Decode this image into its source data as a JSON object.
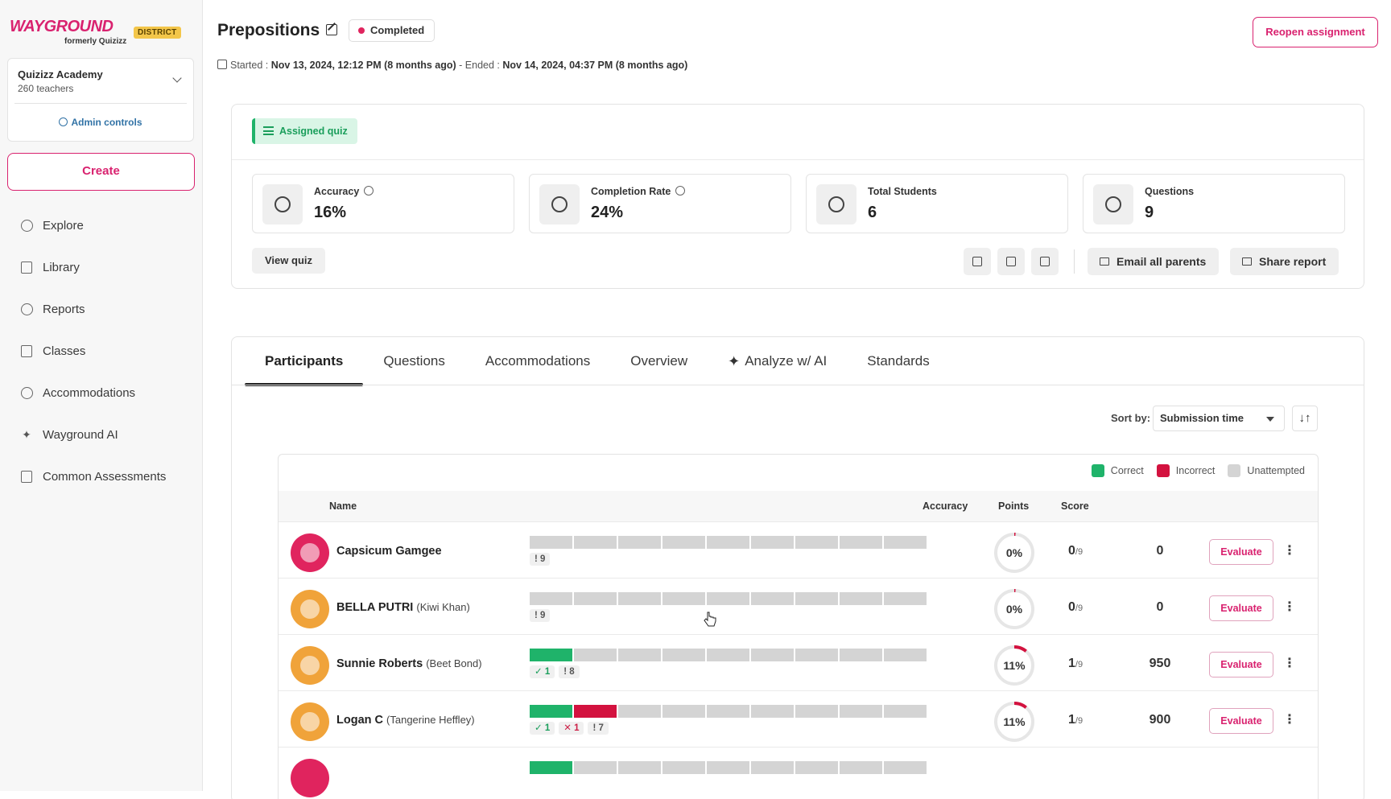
{
  "brand": {
    "logo": "WAYGROUND",
    "subtitle": "formerly Quizizz",
    "badge": "DISTRICT",
    "accent": "#d9226f"
  },
  "org": {
    "name": "Quizizz Academy",
    "count": "260 teachers",
    "admin_label": "Admin controls"
  },
  "sidebar": {
    "create_label": "Create",
    "items": [
      {
        "label": "Explore",
        "icon": "home-icon"
      },
      {
        "label": "Library",
        "icon": "library-icon"
      },
      {
        "label": "Reports",
        "icon": "reports-icon"
      },
      {
        "label": "Classes",
        "icon": "classes-icon"
      },
      {
        "label": "Accommodations",
        "icon": "accommodations-icon"
      },
      {
        "label": "Wayground AI",
        "icon": "sparkle-icon"
      },
      {
        "label": "Common Assessments",
        "icon": "clipboard-icon"
      }
    ]
  },
  "header": {
    "title": "Prepositions",
    "status": "Completed",
    "reopen_label": "Reopen assignment",
    "started_label": "Started :",
    "started_value": "Nov 13, 2024, 12:12 PM (8 months ago)",
    "ended_label": "- Ended :",
    "ended_value": "Nov 14, 2024, 04:37 PM (8 months ago)"
  },
  "summary": {
    "tag": "Assigned quiz",
    "stats": [
      {
        "label": "Accuracy",
        "value": "16%",
        "icon": "target-icon",
        "info": true
      },
      {
        "label": "Completion Rate",
        "value": "24%",
        "icon": "check-circle-icon",
        "info": true
      },
      {
        "label": "Total Students",
        "value": "6",
        "icon": "users-icon",
        "info": false
      },
      {
        "label": "Questions",
        "value": "9",
        "icon": "question-icon",
        "info": false
      }
    ],
    "view_quiz_label": "View quiz",
    "email_label": "Email all parents",
    "share_label": "Share report"
  },
  "tabs": [
    "Participants",
    "Questions",
    "Accommodations",
    "Overview",
    "Analyze w/ AI",
    "Standards"
  ],
  "sort": {
    "label": "Sort by:",
    "value": "Submission time",
    "order_glyph": "↓↑"
  },
  "legend": [
    {
      "label": "Correct",
      "color": "#1fb36a"
    },
    {
      "label": "Incorrect",
      "color": "#d3123f"
    },
    {
      "label": "Unattempted",
      "color": "#d4d4d4"
    }
  ],
  "table": {
    "headers": {
      "name": "Name",
      "accuracy": "Accuracy",
      "points": "Points",
      "score": "Score"
    },
    "evaluate_label": "Evaluate",
    "rows": [
      {
        "name": "Capsicum Gamgee",
        "alias": "",
        "correct": 0,
        "incorrect": 0,
        "unattempted": 9,
        "accuracy": "0%",
        "accuracy_value": 0,
        "points": "0",
        "points_total": "/9",
        "score": "0",
        "avatar_color": "#e0245e"
      },
      {
        "name": "BELLA PUTRI",
        "alias": "(Kiwi Khan)",
        "correct": 0,
        "incorrect": 0,
        "unattempted": 9,
        "accuracy": "0%",
        "accuracy_value": 0,
        "points": "0",
        "points_total": "/9",
        "score": "0",
        "avatar_color": "#f0a33a"
      },
      {
        "name": "Sunnie Roberts",
        "alias": "(Beet Bond)",
        "correct": 1,
        "incorrect": 0,
        "unattempted": 8,
        "accuracy": "11%",
        "accuracy_value": 11,
        "points": "1",
        "points_total": "/9",
        "score": "950",
        "avatar_color": "#f0a33a"
      },
      {
        "name": "Logan C",
        "alias": "(Tangerine Heffley)",
        "correct": 1,
        "incorrect": 1,
        "unattempted": 7,
        "accuracy": "11%",
        "accuracy_value": 11,
        "points": "1",
        "points_total": "/9",
        "score": "900",
        "avatar_color": "#f0a33a"
      }
    ]
  }
}
